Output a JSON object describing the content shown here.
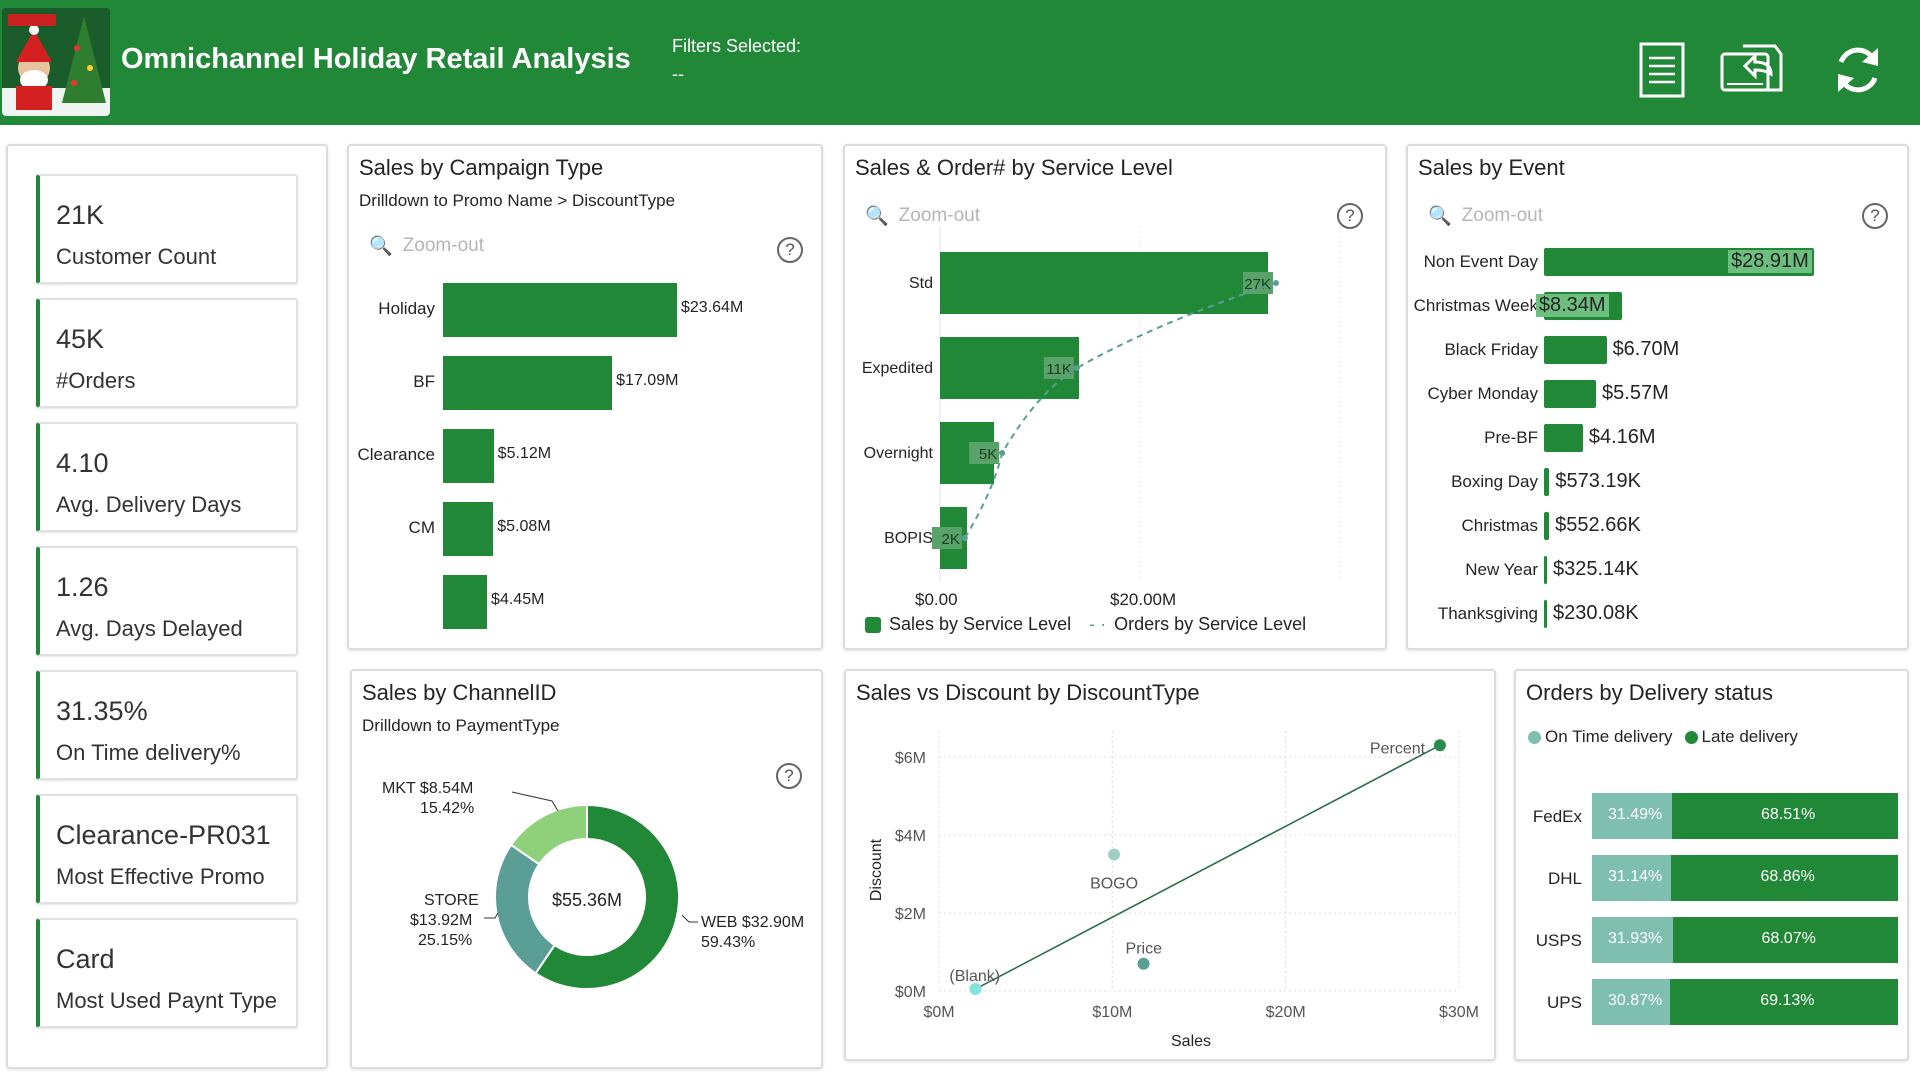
{
  "header": {
    "title": "Omnichannel Holiday Retail Analysis",
    "filters_label": "Filters Selected:",
    "filters_value": "--",
    "icons": [
      "report-icon",
      "export-icon",
      "refresh-icon"
    ]
  },
  "colors": {
    "brand": "#218838",
    "light_green": "#8fd07a",
    "teal": "#5a9e95",
    "on_time": "#7fbfb0"
  },
  "kpis": [
    {
      "value": "21K",
      "label": "Customer Count"
    },
    {
      "value": "45K",
      "label": "#Orders"
    },
    {
      "value": "4.10",
      "label": "Avg. Delivery Days"
    },
    {
      "value": "1.26",
      "label": "Avg. Days Delayed"
    },
    {
      "value": "31.35%",
      "label": "On Time delivery%"
    },
    {
      "value": "Clearance-PR031",
      "label": "Most Effective Promo"
    },
    {
      "value": "Card",
      "label": "Most Used Paynt Type"
    }
  ],
  "campaign": {
    "title": "Sales by Campaign Type",
    "subtitle": "Drilldown to Promo Name > DiscountType",
    "zoom": "Zoom-out",
    "help": "?"
  },
  "service": {
    "title": "Sales & Order# by Service Level",
    "zoom": "Zoom-out",
    "help": "?",
    "x_ticks": [
      "$0.00",
      "$20.00M"
    ],
    "legend": [
      "Sales by Service Level",
      "Orders by Service Level"
    ]
  },
  "event": {
    "title": "Sales by Event",
    "zoom": "Zoom-out",
    "help": "?"
  },
  "channel": {
    "title": "Sales by ChannelID",
    "subtitle": "Drilldown to  PaymentType",
    "help": "?",
    "center": "$55.36M",
    "labels": [
      {
        "name": "MKT $8.54M",
        "pct": "15.42%"
      },
      {
        "name": "STORE",
        "amount": "$13.92M",
        "pct": "25.15%"
      },
      {
        "name": "WEB $32.90M",
        "pct": "59.43%"
      }
    ]
  },
  "discount": {
    "title": "Sales vs Discount by DiscountType",
    "x_title": "Sales",
    "y_title": "Discount",
    "x_ticks": [
      "$0M",
      "$10M",
      "$20M",
      "$30M"
    ],
    "y_ticks": [
      "$0M",
      "$2M",
      "$4M",
      "$6M"
    ]
  },
  "delivery": {
    "title": "Orders by Delivery status",
    "legend": [
      "On Time delivery",
      "Late delivery"
    ]
  },
  "chart_data": [
    {
      "type": "bar",
      "title": "Sales by Campaign Type",
      "categories": [
        "Holiday",
        "BF",
        "Clearance",
        "CM",
        ""
      ],
      "values": [
        23.64,
        17.09,
        5.12,
        5.08,
        4.45
      ],
      "labels": [
        "$23.64M",
        "$17.09M",
        "$5.12M",
        "$5.08M",
        "$4.45M"
      ]
    },
    {
      "type": "bar",
      "title": "Sales & Order# by Service Level",
      "categories": [
        "Std",
        "Expedited",
        "Overnight",
        "BOPIS"
      ],
      "series": [
        {
          "name": "Sales by Service Level",
          "values": [
            32.8,
            13.9,
            5.4,
            2.7
          ]
        },
        {
          "name": "Orders by Service Level",
          "values": [
            27,
            11,
            5,
            2
          ],
          "labels": [
            "27K",
            "11K",
            "5K",
            "2K"
          ]
        }
      ],
      "x_ticks": [
        "$0.00",
        "$20.00M"
      ]
    },
    {
      "type": "bar",
      "title": "Sales by Event",
      "categories": [
        "Non Event Day",
        "Christmas Week",
        "Black Friday",
        "Cyber Monday",
        "Pre-BF",
        "Boxing Day",
        "Christmas",
        "New Year",
        "Thanksgiving"
      ],
      "values": [
        28.91,
        8.34,
        6.7,
        5.57,
        4.16,
        0.57319,
        0.55266,
        0.32514,
        0.23008
      ],
      "labels": [
        "$28.91M",
        "$8.34M",
        "$6.70M",
        "$5.57M",
        "$4.16M",
        "$573.19K",
        "$552.66K",
        "$325.14K",
        "$230.08K"
      ]
    },
    {
      "type": "pie",
      "title": "Sales by ChannelID",
      "categories": [
        "WEB",
        "STORE",
        "MKT"
      ],
      "values": [
        32.9,
        13.92,
        8.54
      ],
      "percent": [
        59.43,
        25.15,
        15.42
      ],
      "total_label": "$55.36M"
    },
    {
      "type": "scatter",
      "title": "Sales vs Discount by DiscountType",
      "xlabel": "Sales",
      "ylabel": "Discount",
      "xlim": [
        0,
        30
      ],
      "ylim": [
        0,
        6
      ],
      "points": [
        {
          "label": "Percent",
          "x": 28.9,
          "y": 6.3
        },
        {
          "label": "BOGO",
          "x": 10.1,
          "y": 3.5
        },
        {
          "label": "Price",
          "x": 11.8,
          "y": 0.7
        },
        {
          "label": "(Blank)",
          "x": 4.5,
          "y": 0.1
        }
      ],
      "trendline": true
    },
    {
      "type": "bar",
      "title": "Orders by Delivery status",
      "categories": [
        "FedEx",
        "DHL",
        "USPS",
        "UPS"
      ],
      "series": [
        {
          "name": "On Time delivery",
          "values": [
            31.49,
            31.14,
            31.93,
            30.87
          ]
        },
        {
          "name": "Late delivery",
          "values": [
            68.51,
            68.86,
            68.07,
            69.13
          ]
        }
      ],
      "stacked_percent": true
    }
  ]
}
